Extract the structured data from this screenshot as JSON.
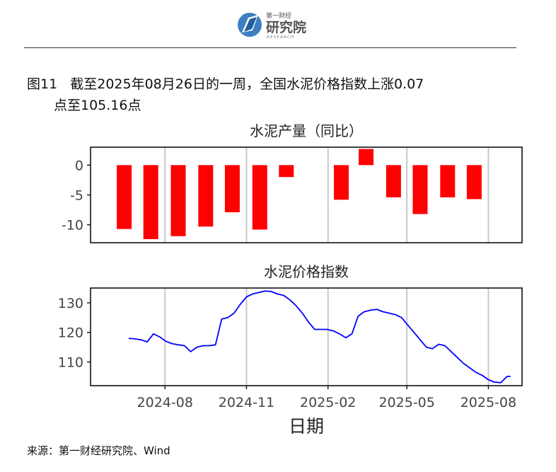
{
  "header": {
    "logo_cn_small": "第一财经",
    "logo_cn_big": "研究院",
    "logo_en": "RESEARCH"
  },
  "figure": {
    "number": "图11",
    "title_line1": "截至2025年08月26日的一周，全国水泥价格指数上涨0.07",
    "title_line2": "点至105.16点"
  },
  "source": "来源：第一财经研究院、Wind",
  "chart_data": [
    {
      "type": "bar",
      "title": "水泥产量（同比）",
      "color": "#ff0000",
      "x": [
        "2024-06",
        "2024-07",
        "2024-08",
        "2024-09",
        "2024-10",
        "2024-11",
        "2024-12",
        "2025-02",
        "2025-03",
        "2025-04",
        "2025-05",
        "2025-06",
        "2025-07"
      ],
      "values": [
        -10.7,
        -12.4,
        -11.9,
        -10.3,
        -7.9,
        -10.8,
        -2.0,
        -5.8,
        2.7,
        -5.4,
        -8.2,
        -5.4,
        -5.7
      ],
      "ylim": [
        -13,
        3
      ],
      "yticks": [
        0,
        -5,
        -10
      ],
      "grid": "x-major"
    },
    {
      "type": "line",
      "title": "水泥价格指数",
      "color": "#0000ff",
      "xlabel": "日期",
      "xticks": [
        "2024-08",
        "2024-11",
        "2025-02",
        "2025-05",
        "2025-08"
      ],
      "ylim": [
        102,
        135
      ],
      "yticks": [
        130,
        120,
        110
      ],
      "grid": "x-major",
      "x": [
        "2024-06-21",
        "2024-06-28",
        "2024-07-05",
        "2024-07-12",
        "2024-07-19",
        "2024-07-26",
        "2024-08-02",
        "2024-08-09",
        "2024-08-16",
        "2024-08-23",
        "2024-08-30",
        "2024-09-06",
        "2024-09-13",
        "2024-09-20",
        "2024-09-27",
        "2024-10-04",
        "2024-10-11",
        "2024-10-18",
        "2024-10-25",
        "2024-11-01",
        "2024-11-08",
        "2024-11-15",
        "2024-11-22",
        "2024-11-29",
        "2024-12-06",
        "2024-12-13",
        "2024-12-20",
        "2024-12-27",
        "2025-01-03",
        "2025-01-10",
        "2025-01-17",
        "2025-01-24",
        "2025-01-31",
        "2025-02-07",
        "2025-02-14",
        "2025-02-21",
        "2025-02-28",
        "2025-03-07",
        "2025-03-14",
        "2025-03-21",
        "2025-03-28",
        "2025-04-04",
        "2025-04-11",
        "2025-04-18",
        "2025-04-25",
        "2025-05-02",
        "2025-05-09",
        "2025-05-16",
        "2025-05-23",
        "2025-05-30",
        "2025-06-06",
        "2025-06-13",
        "2025-06-20",
        "2025-06-27",
        "2025-07-04",
        "2025-07-11",
        "2025-07-18",
        "2025-07-25",
        "2025-08-01",
        "2025-08-08",
        "2025-08-15",
        "2025-08-22",
        "2025-08-26"
      ],
      "values": [
        118.0,
        117.8,
        117.5,
        116.8,
        119.5,
        118.5,
        117.0,
        116.2,
        115.8,
        115.5,
        113.5,
        115.0,
        115.5,
        115.5,
        115.8,
        124.5,
        125.0,
        126.5,
        129.5,
        132.0,
        133.0,
        133.5,
        134.0,
        133.8,
        133.0,
        132.5,
        131.0,
        129.0,
        126.5,
        123.5,
        121.0,
        121.0,
        121.0,
        120.5,
        119.5,
        118.2,
        119.5,
        125.5,
        127.0,
        127.5,
        127.8,
        127.0,
        126.5,
        126.0,
        125.0,
        122.5,
        120.0,
        117.5,
        115.0,
        114.5,
        116.0,
        115.5,
        113.5,
        111.5,
        109.5,
        108.0,
        106.5,
        105.5,
        104.0,
        103.2,
        103.0,
        105.1,
        105.16
      ]
    }
  ]
}
